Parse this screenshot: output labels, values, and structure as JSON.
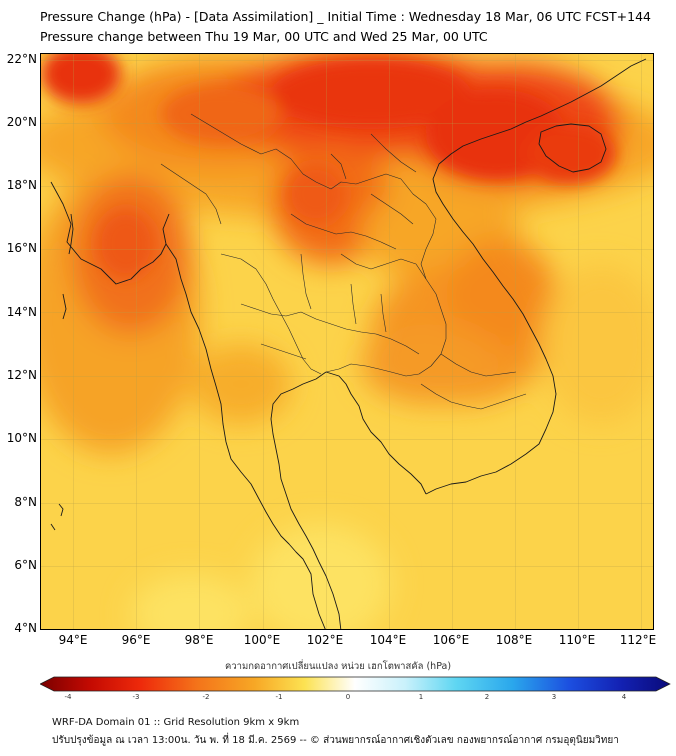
{
  "title": {
    "line1": "Pressure Change (hPa) - [Data Assimilation] _ Initial Time : Wednesday 18 Mar, 06 UTC FCST+144",
    "line2": "Pressure change between Thu 19 Mar, 00 UTC and Wed 25 Mar, 00 UTC"
  },
  "map": {
    "latitude_labels": [
      "22°N",
      "20°N",
      "18°N",
      "16°N",
      "14°N",
      "12°N",
      "10°N",
      "8°N",
      "6°N",
      "4°N"
    ],
    "longitude_labels": [
      "94°E",
      "96°E",
      "98°E",
      "100°E",
      "102°E",
      "104°E",
      "106°E",
      "108°E",
      "110°E",
      "112°E"
    ],
    "lat_range": [
      4,
      22.2
    ],
    "lon_range": [
      93,
      112.4
    ],
    "projection": "equirectangular",
    "grid": true,
    "field_colors": {
      "light": "#fcd74a",
      "mid": "#f7b028",
      "orange": "#f4891c",
      "red": "#ef4a14",
      "deep_red": "#e82b0c"
    }
  },
  "colorbar": {
    "title": "ความกดอากาศเปลี่ยนแปลง หน่วย เฮกโตพาสคัล (hPa)",
    "ticks": [
      "-4",
      "-3",
      "-2",
      "-1",
      "0",
      "1",
      "2",
      "3",
      "4"
    ],
    "range": [
      -4,
      4
    ],
    "colors": [
      "#7a0000",
      "#e8200a",
      "#f5a623",
      "#fde14a",
      "#ffffff",
      "#c9f1fb",
      "#33c9ee",
      "#1c4fe0",
      "#0a0a7a"
    ]
  },
  "footer": {
    "line1": "WRF-DA Domain 01 :: Grid Resolution 9km x 9km",
    "line2": "ปรับปรุงข้อมูล ณ เวลา 13:00น. วัน พ. ที่ 18 มี.ค. 2569 -- © ส่วนพยากรณ์อากาศเชิงตัวเลข กองพยากรณ์อากาศ กรมอุตุนิยมวิทยา"
  }
}
